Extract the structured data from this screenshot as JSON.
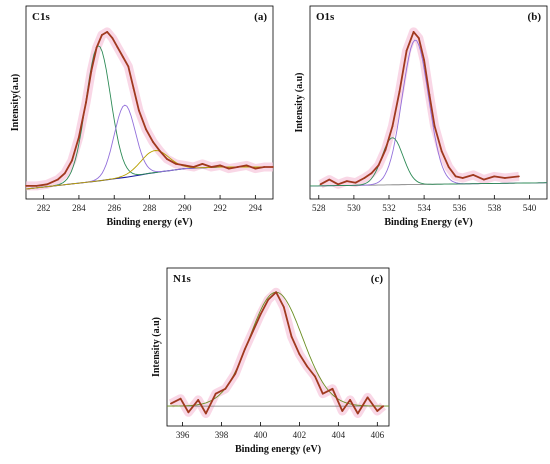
{
  "chart_data": [
    {
      "type": "line",
      "panel_label": "(a)",
      "title": "C1s",
      "xlabel": "Binding energy (eV)",
      "ylabel": "Intensity(a.u)",
      "xlim": [
        281,
        295
      ],
      "ylim": [
        0,
        1.05
      ],
      "xticks": [
        282,
        284,
        286,
        288,
        290,
        292,
        294
      ],
      "y_ticks_shown": false,
      "background": {
        "x": [
          281,
          285,
          287,
          288,
          290,
          292,
          295
        ],
        "y": [
          0.0,
          0.05,
          0.08,
          0.1,
          0.13,
          0.14,
          0.14
        ]
      },
      "components": [
        {
          "center": 285.1,
          "sigma": 0.7,
          "height": 0.86,
          "color": "#2e8b57"
        },
        {
          "center": 286.6,
          "sigma": 0.6,
          "height": 0.46,
          "color": "#9370db"
        },
        {
          "center": 288.3,
          "sigma": 0.8,
          "height": 0.14,
          "color": "#b8a000"
        }
      ],
      "series": [
        {
          "color": "#a0391f",
          "x": [
            281.0,
            281.6,
            282.2,
            282.8,
            283.2,
            283.6,
            284.0,
            284.4,
            284.7,
            285.0,
            285.3,
            285.6,
            285.9,
            286.2,
            286.5,
            286.8,
            287.1,
            287.4,
            287.8,
            288.2,
            288.6,
            289.0,
            289.5,
            290.0,
            290.5,
            291.0,
            291.5,
            292.0,
            292.5,
            293.0,
            293.5,
            294.0,
            294.5,
            295.0
          ],
          "y": [
            0.02,
            0.02,
            0.03,
            0.06,
            0.1,
            0.18,
            0.33,
            0.55,
            0.75,
            0.9,
            0.98,
            1.0,
            0.96,
            0.9,
            0.84,
            0.78,
            0.64,
            0.5,
            0.38,
            0.3,
            0.24,
            0.19,
            0.16,
            0.15,
            0.14,
            0.16,
            0.14,
            0.15,
            0.13,
            0.14,
            0.15,
            0.13,
            0.14,
            0.14
          ]
        }
      ]
    },
    {
      "type": "line",
      "panel_label": "(b)",
      "title": "O1s",
      "xlabel": "Binding Energy (eV)",
      "ylabel": "Intensity (a.u)",
      "xlim": [
        527.5,
        541
      ],
      "ylim": [
        0,
        1.05
      ],
      "xticks": [
        528,
        530,
        532,
        534,
        536,
        538,
        540
      ],
      "y_ticks_shown": false,
      "background": {
        "x": [
          528,
          541
        ],
        "y": [
          0.02,
          0.04
        ]
      },
      "components": [
        {
          "center": 533.5,
          "sigma": 0.75,
          "height": 0.92,
          "color": "#9370db"
        },
        {
          "center": 532.2,
          "sigma": 0.6,
          "height": 0.3,
          "color": "#2e8b57"
        }
      ],
      "series": [
        {
          "color": "#a0391f",
          "x": [
            528.1,
            528.6,
            529.1,
            529.6,
            530.1,
            530.6,
            531.0,
            531.4,
            531.8,
            532.2,
            532.6,
            533.0,
            533.4,
            533.7,
            534.0,
            534.3,
            534.6,
            535.0,
            535.4,
            535.8,
            536.2,
            536.8,
            537.4,
            538.0,
            538.6,
            539.4
          ],
          "y": [
            0.03,
            0.06,
            0.03,
            0.05,
            0.04,
            0.07,
            0.1,
            0.15,
            0.25,
            0.4,
            0.62,
            0.88,
            1.0,
            0.96,
            0.82,
            0.6,
            0.4,
            0.24,
            0.14,
            0.08,
            0.07,
            0.09,
            0.06,
            0.08,
            0.07,
            0.08
          ]
        }
      ]
    },
    {
      "type": "line",
      "panel_label": "(c)",
      "title": "N1s",
      "xlabel": "Binding energy (eV)",
      "ylabel": "Intensity (a.u)",
      "xlim": [
        395.2,
        406.6
      ],
      "ylim": [
        0,
        1.05
      ],
      "xticks": [
        396,
        398,
        400,
        402,
        404,
        406
      ],
      "y_ticks_shown": false,
      "background": {
        "x": [
          395.3,
          406.4
        ],
        "y": [
          0.08,
          0.08
        ]
      },
      "components": [
        {
          "center": 400.8,
          "sigma": 1.35,
          "height": 0.92,
          "color": "#6b8e23"
        }
      ],
      "series": [
        {
          "color": "#a0391f",
          "x": [
            395.4,
            395.9,
            396.3,
            396.8,
            397.2,
            397.7,
            398.2,
            398.7,
            399.2,
            399.6,
            400.0,
            400.4,
            400.8,
            401.2,
            401.6,
            402.0,
            402.4,
            402.8,
            403.2,
            403.7,
            404.2,
            404.6,
            405.0,
            405.5,
            406.0,
            406.3
          ],
          "y": [
            0.1,
            0.14,
            0.03,
            0.13,
            0.02,
            0.18,
            0.22,
            0.34,
            0.54,
            0.68,
            0.82,
            0.94,
            1.0,
            0.88,
            0.64,
            0.5,
            0.4,
            0.32,
            0.18,
            0.22,
            0.04,
            0.13,
            0.02,
            0.15,
            0.04,
            0.08
          ]
        }
      ]
    }
  ]
}
